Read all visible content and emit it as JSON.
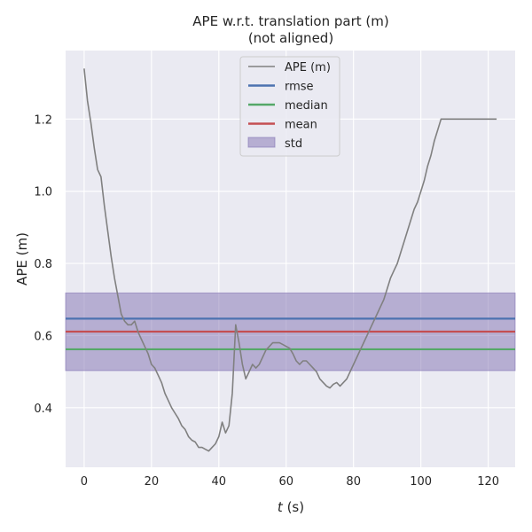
{
  "chart_data": {
    "type": "line",
    "title_line1": "APE w.r.t. translation part (m)",
    "title_line2": "(not aligned)",
    "xlabel_italic": "t",
    "xlabel_rest": " (s)",
    "ylabel": "APE (m)",
    "xlim": [
      -5.5,
      128
    ],
    "ylim": [
      0.235,
      1.39
    ],
    "x_ticks": [
      0,
      20,
      40,
      60,
      80,
      100,
      120
    ],
    "y_ticks": [
      0.4,
      0.6,
      0.8,
      1.0,
      1.2
    ],
    "x_tick_labels": [
      "0",
      "20",
      "40",
      "60",
      "80",
      "100",
      "120"
    ],
    "y_tick_labels": [
      "0.4",
      "0.6",
      "0.8",
      "1.0",
      "1.2"
    ],
    "grid": true,
    "legend_position": "top-center",
    "colors": {
      "background": "#EAEAF2",
      "grid": "#FFFFFF",
      "ape": "#808080",
      "rmse": "#4C72B0",
      "median": "#55A868",
      "mean": "#C44E52",
      "std": "#8172B2"
    },
    "stats": {
      "rmse": 0.647,
      "median": 0.562,
      "mean": 0.611,
      "std_band": [
        0.503,
        0.718
      ]
    },
    "legend": [
      "APE (m)",
      "rmse",
      "median",
      "mean",
      "std"
    ],
    "series": [
      {
        "name": "APE (m)",
        "x": [
          0,
          1,
          2,
          3,
          4,
          5,
          6,
          7,
          8,
          9,
          10,
          11,
          12,
          13,
          14,
          15,
          16,
          17,
          18,
          19,
          20,
          21,
          22,
          23,
          24,
          25,
          26,
          27,
          28,
          29,
          30,
          31,
          32,
          33,
          34,
          35,
          36,
          37,
          38,
          39,
          40,
          41,
          42,
          43,
          44,
          45,
          46,
          47,
          48,
          49,
          50,
          51,
          52,
          53,
          54,
          55,
          56,
          57,
          58,
          59,
          60,
          61,
          62,
          63,
          64,
          65,
          66,
          67,
          68,
          69,
          70,
          71,
          72,
          73,
          74,
          75,
          76,
          77,
          78,
          79,
          80,
          81,
          82,
          83,
          84,
          85,
          86,
          87,
          88,
          89,
          90,
          91,
          92,
          93,
          94,
          95,
          96,
          97,
          98,
          99,
          100,
          101,
          102,
          103,
          104,
          105,
          106,
          107,
          108,
          109,
          110,
          111,
          112,
          113,
          114,
          115,
          116,
          117,
          118,
          119,
          120,
          121,
          122,
          122.5
        ],
        "y": [
          1.34,
          1.25,
          1.19,
          1.12,
          1.06,
          1.04,
          0.96,
          0.89,
          0.82,
          0.76,
          0.71,
          0.66,
          0.64,
          0.63,
          0.63,
          0.64,
          0.61,
          0.59,
          0.57,
          0.55,
          0.52,
          0.51,
          0.49,
          0.47,
          0.44,
          0.42,
          0.4,
          0.385,
          0.37,
          0.35,
          0.34,
          0.32,
          0.31,
          0.305,
          0.29,
          0.29,
          0.285,
          0.28,
          0.29,
          0.3,
          0.32,
          0.36,
          0.33,
          0.35,
          0.44,
          0.63,
          0.58,
          0.52,
          0.48,
          0.5,
          0.52,
          0.51,
          0.52,
          0.54,
          0.56,
          0.57,
          0.58,
          0.58,
          0.58,
          0.575,
          0.57,
          0.565,
          0.55,
          0.53,
          0.52,
          0.53,
          0.53,
          0.52,
          0.51,
          0.5,
          0.48,
          0.47,
          0.46,
          0.455,
          0.465,
          0.47,
          0.46,
          0.47,
          0.48,
          0.5,
          0.52,
          0.54,
          0.56,
          0.58,
          0.6,
          0.62,
          0.64,
          0.66,
          0.68,
          0.7,
          0.73,
          0.76,
          0.78,
          0.8,
          0.83,
          0.86,
          0.89,
          0.92,
          0.95,
          0.97,
          1.0,
          1.03,
          1.07,
          1.1,
          1.14,
          1.17,
          1.2,
          1.2,
          1.2,
          1.2,
          1.2,
          1.2,
          1.2,
          1.2,
          1.2,
          1.2,
          1.2,
          1.2,
          1.2,
          1.2,
          1.2,
          1.2,
          1.2,
          1.2
        ]
      }
    ]
  }
}
